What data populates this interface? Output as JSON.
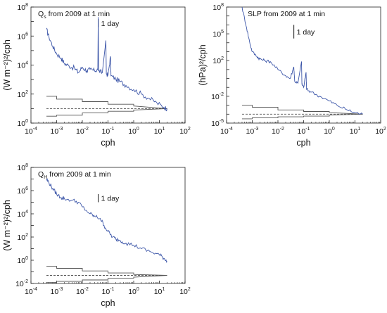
{
  "chart_data": [
    {
      "type": "line",
      "title": "Q",
      "title_sub": "s",
      "title_rest": " from 2009 at 1 min",
      "xlabel": "cph",
      "ylabel": "(W m⁻²)²/cph",
      "xscale": "log",
      "yscale": "log",
      "xlim": [
        0.0001,
        100
      ],
      "ylim": [
        1,
        100000000
      ],
      "xticks": [
        {
          "base": "10",
          "exp": "-4"
        },
        {
          "base": "10",
          "exp": "-3"
        },
        {
          "base": "10",
          "exp": "-2"
        },
        {
          "base": "10",
          "exp": "-1"
        },
        {
          "base": "10",
          "exp": "0"
        },
        {
          "base": "10",
          "exp": "1"
        },
        {
          "base": "10",
          "exp": "2"
        }
      ],
      "yticks": [
        {
          "value": 1,
          "base": "10",
          "exp": "0"
        },
        {
          "value": 100,
          "base": "10",
          "exp": "2"
        },
        {
          "value": 10000,
          "base": "10",
          "exp": "4"
        },
        {
          "value": 1000000,
          "base": "10",
          "exp": "6"
        },
        {
          "value": 100000000,
          "base": "10",
          "exp": "8"
        }
      ],
      "annotation": "1 day",
      "annotation_x": 0.0417,
      "annotation_y_range": [
        4000000,
        15000000
      ],
      "spectrum": [
        [
          0.0004,
          3000000
        ],
        [
          0.0005,
          900000
        ],
        [
          0.0007,
          200000
        ],
        [
          0.001,
          60000
        ],
        [
          0.0015,
          30000
        ],
        [
          0.002,
          13000
        ],
        [
          0.003,
          9000
        ],
        [
          0.005,
          6000
        ],
        [
          0.007,
          3000
        ],
        [
          0.01,
          7000
        ],
        [
          0.015,
          4000
        ],
        [
          0.02,
          5000
        ],
        [
          0.03,
          4000
        ],
        [
          0.04,
          5000
        ],
        [
          0.0417,
          20000000
        ],
        [
          0.043,
          4000
        ],
        [
          0.06,
          3000
        ],
        [
          0.083,
          500000
        ],
        [
          0.086,
          2500
        ],
        [
          0.1,
          2000
        ],
        [
          0.125,
          40000
        ],
        [
          0.13,
          1800
        ],
        [
          0.2,
          1100
        ],
        [
          0.3,
          700
        ],
        [
          0.5,
          400
        ],
        [
          1,
          200
        ],
        [
          2,
          100
        ],
        [
          4,
          50
        ],
        [
          8,
          25
        ],
        [
          15,
          12
        ],
        [
          20,
          10
        ]
      ],
      "ci_upper": [
        [
          0.0004,
          70
        ],
        [
          0.001,
          70
        ],
        [
          0.001,
          45
        ],
        [
          0.01,
          45
        ],
        [
          0.01,
          30
        ],
        [
          0.1,
          30
        ],
        [
          0.1,
          20
        ],
        [
          1,
          20
        ],
        [
          1,
          15
        ],
        [
          20,
          10
        ]
      ],
      "ci_mid": [
        [
          0.0004,
          10
        ],
        [
          20,
          10
        ]
      ],
      "ci_lower": [
        [
          0.0004,
          3
        ],
        [
          0.001,
          3
        ],
        [
          0.001,
          3.5
        ],
        [
          0.01,
          3.5
        ],
        [
          0.01,
          5
        ],
        [
          0.1,
          5
        ],
        [
          0.1,
          6.5
        ],
        [
          1,
          6.5
        ],
        [
          1,
          8
        ],
        [
          20,
          10
        ]
      ],
      "colors": {
        "spectrum": "#3b55a8",
        "ci": "#555555"
      }
    },
    {
      "type": "line",
      "title": "SLP from 2009 at 1 min",
      "title_sub": "",
      "title_rest": "",
      "xlabel": "cph",
      "ylabel": "(hPa)²/cph",
      "xscale": "log",
      "yscale": "log",
      "xlim": [
        0.0001,
        100
      ],
      "ylim": [
        1e-05,
        100000000
      ],
      "xticks": [
        {
          "base": "10",
          "exp": "-4"
        },
        {
          "base": "10",
          "exp": "-3"
        },
        {
          "base": "10",
          "exp": "-2"
        },
        {
          "base": "10",
          "exp": "-1"
        },
        {
          "base": "10",
          "exp": "0"
        },
        {
          "base": "10",
          "exp": "1"
        },
        {
          "base": "10",
          "exp": "2"
        }
      ],
      "yticks": [
        {
          "value": 1e-05,
          "base": "10",
          "exp": "-5"
        },
        {
          "value": 0.01,
          "base": "10",
          "exp": "-2"
        },
        {
          "value": 100,
          "base": "10",
          "exp": "2"
        },
        {
          "value": 100000,
          "base": "10",
          "exp": "5"
        },
        {
          "value": 100000000,
          "base": "10",
          "exp": "8"
        }
      ],
      "annotation": "1 day",
      "annotation_x": 0.0417,
      "annotation_y_range": [
        30000,
        1000000
      ],
      "spectrum": [
        [
          0.0004,
          100000000
        ],
        [
          0.0006,
          500000
        ],
        [
          0.0008,
          10000
        ],
        [
          0.001,
          1000
        ],
        [
          0.0015,
          300
        ],
        [
          0.002,
          150
        ],
        [
          0.003,
          100
        ],
        [
          0.005,
          80
        ],
        [
          0.01,
          10
        ],
        [
          0.02,
          2
        ],
        [
          0.03,
          1
        ],
        [
          0.0417,
          20
        ],
        [
          0.045,
          0.5
        ],
        [
          0.06,
          0.3
        ],
        [
          0.083,
          80
        ],
        [
          0.086,
          0.2
        ],
        [
          0.1,
          0.1
        ],
        [
          0.125,
          5
        ],
        [
          0.13,
          0.06
        ],
        [
          0.2,
          0.03
        ],
        [
          0.5,
          0.008
        ],
        [
          1,
          0.003
        ],
        [
          2,
          0.001
        ],
        [
          5,
          0.0003
        ],
        [
          10,
          0.00015
        ],
        [
          20,
          0.0001
        ]
      ],
      "ci_upper": [
        [
          0.0004,
          0.001
        ],
        [
          0.001,
          0.001
        ],
        [
          0.001,
          0.0006
        ],
        [
          0.01,
          0.0006
        ],
        [
          0.01,
          0.0003
        ],
        [
          0.1,
          0.0003
        ],
        [
          0.1,
          0.0002
        ],
        [
          1,
          0.0002
        ],
        [
          1,
          0.00015
        ],
        [
          20,
          0.0001
        ]
      ],
      "ci_mid": [
        [
          0.0004,
          0.0001
        ],
        [
          20,
          0.0001
        ]
      ],
      "ci_lower": [
        [
          0.0004,
          3e-05
        ],
        [
          0.001,
          3e-05
        ],
        [
          0.001,
          4e-05
        ],
        [
          0.01,
          4e-05
        ],
        [
          0.01,
          5e-05
        ],
        [
          0.1,
          5e-05
        ],
        [
          0.1,
          6e-05
        ],
        [
          1,
          6e-05
        ],
        [
          1,
          8e-05
        ],
        [
          20,
          0.0001
        ]
      ],
      "colors": {
        "spectrum": "#3b55a8",
        "ci": "#555555"
      }
    },
    {
      "type": "line",
      "title": "Q",
      "title_sub": "H",
      "title_rest": " from 2009 at 1 min",
      "xlabel": "cph",
      "ylabel": "(W m⁻²)²/cph",
      "xscale": "log",
      "yscale": "log",
      "xlim": [
        0.0001,
        100
      ],
      "ylim": [
        0.01,
        100000000
      ],
      "xticks": [
        {
          "base": "10",
          "exp": "-4"
        },
        {
          "base": "10",
          "exp": "-3"
        },
        {
          "base": "10",
          "exp": "-2"
        },
        {
          "base": "10",
          "exp": "-1"
        },
        {
          "base": "10",
          "exp": "0"
        },
        {
          "base": "10",
          "exp": "1"
        },
        {
          "base": "10",
          "exp": "2"
        }
      ],
      "yticks": [
        {
          "value": 0.01,
          "base": "10",
          "exp": "-2"
        },
        {
          "value": 1,
          "base": "10",
          "exp": "0"
        },
        {
          "value": 100,
          "base": "10",
          "exp": "2"
        },
        {
          "value": 10000,
          "base": "10",
          "exp": "4"
        },
        {
          "value": 1000000,
          "base": "10",
          "exp": "6"
        },
        {
          "value": 100000000,
          "base": "10",
          "exp": "8"
        }
      ],
      "annotation": "1 day",
      "annotation_x": 0.0417,
      "annotation_y_range": [
        100000,
        500000
      ],
      "spectrum": [
        [
          0.0004,
          10000000
        ],
        [
          0.0005,
          5000000
        ],
        [
          0.0007,
          1500000
        ],
        [
          0.001,
          500000
        ],
        [
          0.0015,
          250000
        ],
        [
          0.002,
          200000
        ],
        [
          0.004,
          150000
        ],
        [
          0.007,
          100000
        ],
        [
          0.01,
          40000
        ],
        [
          0.02,
          10000
        ],
        [
          0.03,
          6000
        ],
        [
          0.05,
          4000
        ],
        [
          0.07,
          1000
        ],
        [
          0.1,
          300
        ],
        [
          0.15,
          100
        ],
        [
          0.2,
          70
        ],
        [
          0.3,
          50
        ],
        [
          0.5,
          30
        ],
        [
          1,
          20
        ],
        [
          2,
          10
        ],
        [
          5,
          5
        ],
        [
          10,
          3
        ],
        [
          15,
          1.5
        ],
        [
          20,
          0.8
        ]
      ],
      "ci_upper": [
        [
          0.0004,
          0.3
        ],
        [
          0.001,
          0.3
        ],
        [
          0.001,
          0.2
        ],
        [
          0.01,
          0.2
        ],
        [
          0.01,
          0.12
        ],
        [
          0.1,
          0.12
        ],
        [
          0.1,
          0.08
        ],
        [
          1,
          0.08
        ],
        [
          1,
          0.06
        ],
        [
          20,
          0.05
        ]
      ],
      "ci_mid": [
        [
          0.0004,
          0.05
        ],
        [
          20,
          0.05
        ]
      ],
      "ci_lower": [
        [
          0.0004,
          0.012
        ],
        [
          0.001,
          0.012
        ],
        [
          0.001,
          0.015
        ],
        [
          0.01,
          0.015
        ],
        [
          0.01,
          0.02
        ],
        [
          0.1,
          0.02
        ],
        [
          0.1,
          0.028
        ],
        [
          1,
          0.028
        ],
        [
          1,
          0.035
        ],
        [
          20,
          0.05
        ]
      ],
      "colors": {
        "spectrum": "#3b55a8",
        "ci": "#555555"
      }
    }
  ]
}
